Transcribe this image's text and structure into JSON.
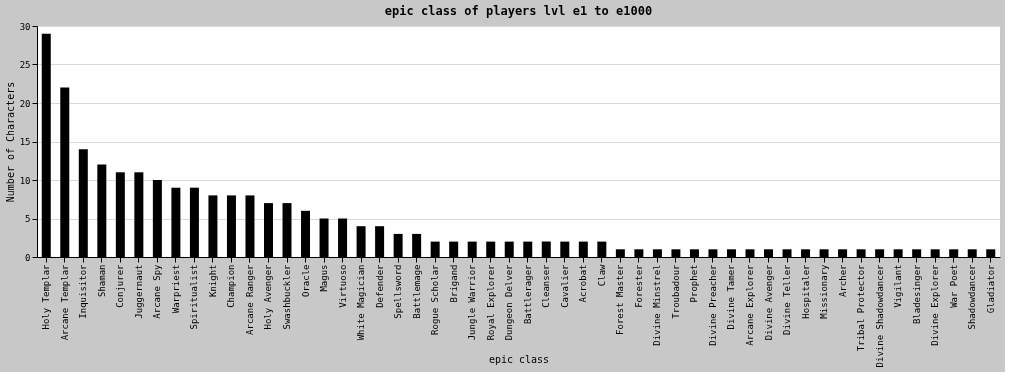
{
  "chart_data": {
    "type": "bar",
    "title": "epic class of players lvl e1 to e1000",
    "xlabel": "epic class",
    "ylabel": "Number of Characters",
    "categories": [
      "Holy Templar",
      "Arcane Templar",
      "Inquisitor",
      "Shaman",
      "Conjurer",
      "Juggernaut",
      "Arcane Spy",
      "Warpriest",
      "Spiritualist",
      "Knight",
      "Champion",
      "Arcane Ranger",
      "Holy Avenger",
      "Swashbuckler",
      "Oracle",
      "Magus",
      "Virtuoso",
      "White Magician",
      "Defender",
      "Spellsword",
      "Battlemage",
      "Rogue Scholar",
      "Brigand",
      "Jungle Warrior",
      "Royal Explorer",
      "Dungeon Delver",
      "Battlerager",
      "Cleanser",
      "Cavalier",
      "Acrobat",
      "Claw",
      "Forest Master",
      "Forester",
      "Divine Minstrel",
      "Troubadour",
      "Prophet",
      "Divine Preacher",
      "Divine Tamer",
      "Arcane Explorer",
      "Divine Avenger",
      "Divine Teller",
      "Hospitaler",
      "Missionary",
      "Archer",
      "Tribal Protector",
      "Divine Shadowdancer",
      "Vigilant",
      "Bladesinger",
      "Divine Explorer",
      "War Poet",
      "Shadowdancer",
      "Gladiator"
    ],
    "values": [
      29,
      22,
      14,
      12,
      11,
      11,
      10,
      9,
      9,
      8,
      8,
      8,
      7,
      7,
      6,
      5,
      5,
      4,
      4,
      3,
      3,
      2,
      2,
      2,
      2,
      2,
      2,
      2,
      2,
      2,
      2,
      1,
      1,
      1,
      1,
      1,
      1,
      1,
      1,
      1,
      1,
      1,
      1,
      1,
      1,
      1,
      1,
      1,
      1,
      1,
      1,
      1
    ],
    "color": "#000000",
    "ylim": [
      0,
      30
    ],
    "yticks": [
      0,
      5,
      10,
      15,
      20,
      25,
      30
    ],
    "grid": "y"
  }
}
